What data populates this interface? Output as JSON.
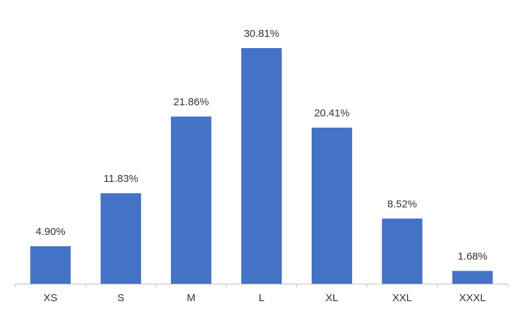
{
  "chart_data": {
    "type": "bar",
    "categories": [
      "XS",
      "S",
      "M",
      "L",
      "XL",
      "XXL",
      "XXXL"
    ],
    "values": [
      4.9,
      11.83,
      21.86,
      30.81,
      20.41,
      8.52,
      1.68
    ],
    "value_labels": [
      "4.90%",
      "11.83%",
      "21.86%",
      "30.81%",
      "20.41%",
      "8.52%",
      "1.68%"
    ],
    "unit": "%",
    "bar_color": "#4472C4",
    "axis_color": "#bfbfbf",
    "text_color": "#333333",
    "ylim": [
      0,
      30.81
    ],
    "grid": false,
    "legend": "none"
  }
}
